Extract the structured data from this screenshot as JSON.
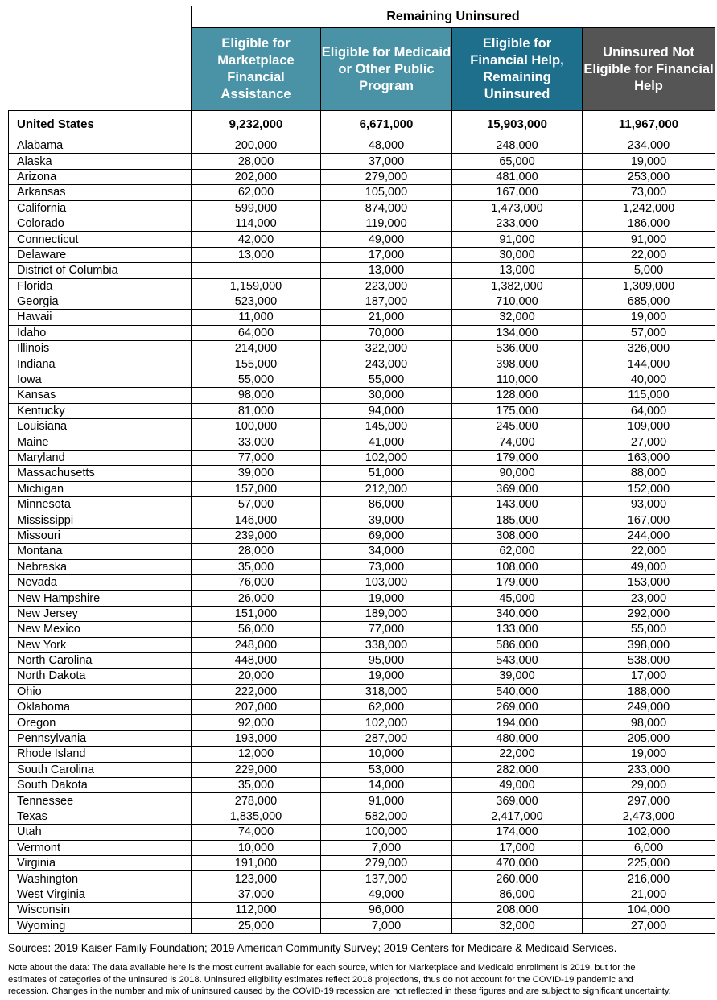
{
  "table": {
    "group_header": "Remaining Uninsured",
    "columns": [
      "Eligible for Marketplace Financial Assistance",
      "Eligible for Medicaid or Other Public Program",
      "Eligible for Financial Help, Remaining Uninsured",
      "Uninsured Not Eligible for Financial Help"
    ],
    "column_colors": [
      "#4a93a6",
      "#4a93a6",
      "#1e6f8c",
      "#555555"
    ],
    "total": [
      "United States",
      "9,232,000",
      "6,671,000",
      "15,903,000",
      "11,967,000"
    ],
    "rows": [
      [
        "Alabama",
        "200,000",
        "48,000",
        "248,000",
        "234,000"
      ],
      [
        "Alaska",
        "28,000",
        "37,000",
        "65,000",
        "19,000"
      ],
      [
        "Arizona",
        "202,000",
        "279,000",
        "481,000",
        "253,000"
      ],
      [
        "Arkansas",
        "62,000",
        "105,000",
        "167,000",
        "73,000"
      ],
      [
        "California",
        "599,000",
        "874,000",
        "1,473,000",
        "1,242,000"
      ],
      [
        "Colorado",
        "114,000",
        "119,000",
        "233,000",
        "186,000"
      ],
      [
        "Connecticut",
        "42,000",
        "49,000",
        "91,000",
        "91,000"
      ],
      [
        "Delaware",
        "13,000",
        "17,000",
        "30,000",
        "22,000"
      ],
      [
        "District of Columbia",
        "",
        "13,000",
        "13,000",
        "5,000"
      ],
      [
        "Florida",
        "1,159,000",
        "223,000",
        "1,382,000",
        "1,309,000"
      ],
      [
        "Georgia",
        "523,000",
        "187,000",
        "710,000",
        "685,000"
      ],
      [
        "Hawaii",
        "11,000",
        "21,000",
        "32,000",
        "19,000"
      ],
      [
        "Idaho",
        "64,000",
        "70,000",
        "134,000",
        "57,000"
      ],
      [
        "Illinois",
        "214,000",
        "322,000",
        "536,000",
        "326,000"
      ],
      [
        "Indiana",
        "155,000",
        "243,000",
        "398,000",
        "144,000"
      ],
      [
        "Iowa",
        "55,000",
        "55,000",
        "110,000",
        "40,000"
      ],
      [
        "Kansas",
        "98,000",
        "30,000",
        "128,000",
        "115,000"
      ],
      [
        "Kentucky",
        "81,000",
        "94,000",
        "175,000",
        "64,000"
      ],
      [
        "Louisiana",
        "100,000",
        "145,000",
        "245,000",
        "109,000"
      ],
      [
        "Maine",
        "33,000",
        "41,000",
        "74,000",
        "27,000"
      ],
      [
        "Maryland",
        "77,000",
        "102,000",
        "179,000",
        "163,000"
      ],
      [
        "Massachusetts",
        "39,000",
        "51,000",
        "90,000",
        "88,000"
      ],
      [
        "Michigan",
        "157,000",
        "212,000",
        "369,000",
        "152,000"
      ],
      [
        "Minnesota",
        "57,000",
        "86,000",
        "143,000",
        "93,000"
      ],
      [
        "Mississippi",
        "146,000",
        "39,000",
        "185,000",
        "167,000"
      ],
      [
        "Missouri",
        "239,000",
        "69,000",
        "308,000",
        "244,000"
      ],
      [
        "Montana",
        "28,000",
        "34,000",
        "62,000",
        "22,000"
      ],
      [
        "Nebraska",
        "35,000",
        "73,000",
        "108,000",
        "49,000"
      ],
      [
        "Nevada",
        "76,000",
        "103,000",
        "179,000",
        "153,000"
      ],
      [
        "New Hampshire",
        "26,000",
        "19,000",
        "45,000",
        "23,000"
      ],
      [
        "New Jersey",
        "151,000",
        "189,000",
        "340,000",
        "292,000"
      ],
      [
        "New Mexico",
        "56,000",
        "77,000",
        "133,000",
        "55,000"
      ],
      [
        "New York",
        "248,000",
        "338,000",
        "586,000",
        "398,000"
      ],
      [
        "North Carolina",
        "448,000",
        "95,000",
        "543,000",
        "538,000"
      ],
      [
        "North Dakota",
        "20,000",
        "19,000",
        "39,000",
        "17,000"
      ],
      [
        "Ohio",
        "222,000",
        "318,000",
        "540,000",
        "188,000"
      ],
      [
        "Oklahoma",
        "207,000",
        "62,000",
        "269,000",
        "249,000"
      ],
      [
        "Oregon",
        "92,000",
        "102,000",
        "194,000",
        "98,000"
      ],
      [
        "Pennsylvania",
        "193,000",
        "287,000",
        "480,000",
        "205,000"
      ],
      [
        "Rhode Island",
        "12,000",
        "10,000",
        "22,000",
        "19,000"
      ],
      [
        "South Carolina",
        "229,000",
        "53,000",
        "282,000",
        "233,000"
      ],
      [
        "South Dakota",
        "35,000",
        "14,000",
        "49,000",
        "29,000"
      ],
      [
        "Tennessee",
        "278,000",
        "91,000",
        "369,000",
        "297,000"
      ],
      [
        "Texas",
        "1,835,000",
        "582,000",
        "2,417,000",
        "2,473,000"
      ],
      [
        "Utah",
        "74,000",
        "100,000",
        "174,000",
        "102,000"
      ],
      [
        "Vermont",
        "10,000",
        "7,000",
        "17,000",
        "6,000"
      ],
      [
        "Virginia",
        "191,000",
        "279,000",
        "470,000",
        "225,000"
      ],
      [
        "Washington",
        "123,000",
        "137,000",
        "260,000",
        "216,000"
      ],
      [
        "West Virginia",
        "37,000",
        "49,000",
        "86,000",
        "21,000"
      ],
      [
        "Wisconsin",
        "112,000",
        "96,000",
        "208,000",
        "104,000"
      ],
      [
        "Wyoming",
        "25,000",
        "7,000",
        "32,000",
        "27,000"
      ]
    ]
  },
  "footer": {
    "sources": "Sources: 2019 Kaiser Family Foundation; 2019 American Community Survey; 2019 Centers for Medicare & Medicaid Services.",
    "note_lines": [
      "Note about the data: The data available here is the most current available for each source, which for Marketplace and Medicaid enrollment is 2019, but for the",
      "estimates of categories of the uninsured is 2018. Uninsured eligibility estimates reflect 2018 projections, thus do not account for the COVID-19 pandemic and",
      "recession. Changes in the number and mix of uninsured caused by the COVID-19 recession are not reflected in these figures and are subject to significant uncertainty."
    ]
  }
}
